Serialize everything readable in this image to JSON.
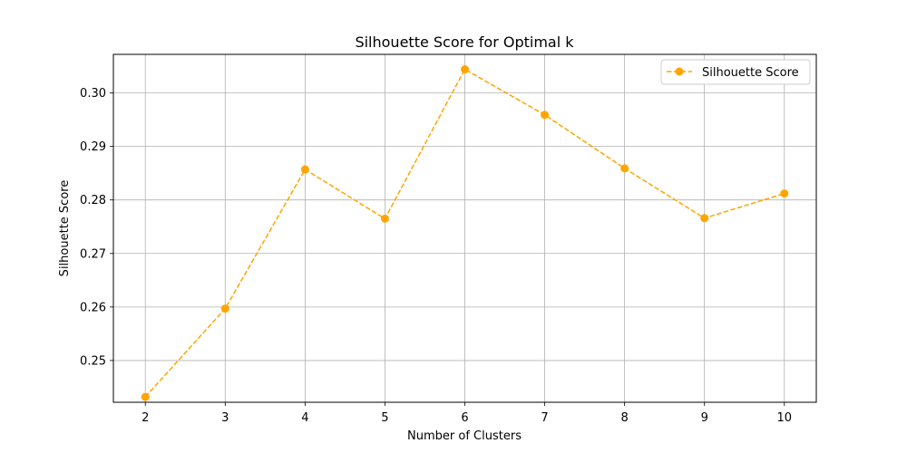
{
  "chart_data": {
    "type": "line",
    "title": "Silhouette Score for Optimal k",
    "xlabel": "Number of Clusters",
    "ylabel": "Silhouette Score",
    "x": [
      2,
      3,
      4,
      5,
      6,
      7,
      8,
      9,
      10
    ],
    "xticks": [
      "2",
      "3",
      "4",
      "5",
      "6",
      "7",
      "8",
      "9",
      "10"
    ],
    "xlim": [
      1.6,
      10.4
    ],
    "yticks": [
      "0.25",
      "0.26",
      "0.27",
      "0.28",
      "0.29",
      "0.30"
    ],
    "ytick_values": [
      0.25,
      0.26,
      0.27,
      0.28,
      0.29,
      0.3
    ],
    "ylim": [
      0.2422,
      0.3072
    ],
    "grid": true,
    "legend_position": "top-right",
    "series": [
      {
        "name": "Silhouette Score",
        "values": [
          0.2432,
          0.2597,
          0.2857,
          0.2765,
          0.3044,
          0.2959,
          0.2859,
          0.2766,
          0.2812
        ],
        "color": "#FFA500",
        "line_style": "dashed",
        "marker": "circle"
      }
    ]
  }
}
